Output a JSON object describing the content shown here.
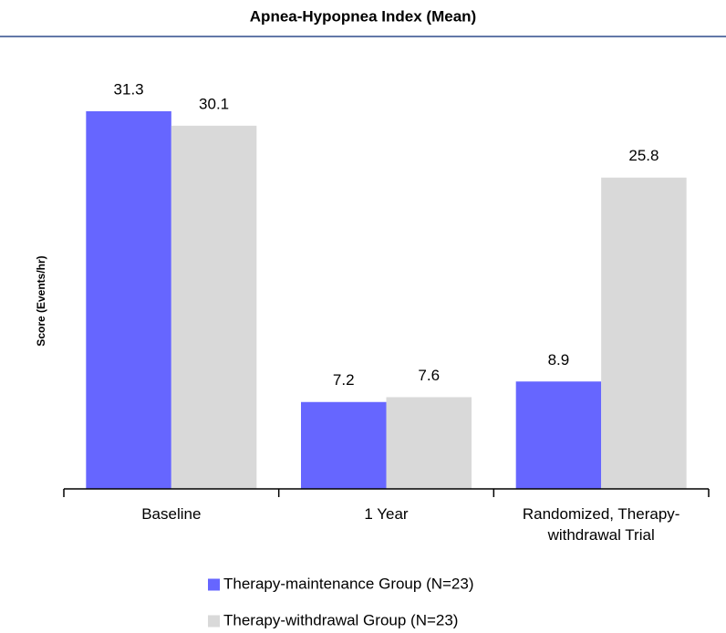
{
  "chart_data": {
    "type": "bar",
    "title": "Apnea-Hypopnea Index (Mean)",
    "y_label": "Score (Events/hr)",
    "categories": [
      "Baseline",
      "1 Year",
      "Randomized, Therapy-withdrawal Trial"
    ],
    "series": [
      {
        "name": "Therapy-maintenance Group (N=23)",
        "color": "#6666ff",
        "values": [
          31.3,
          7.2,
          8.9
        ]
      },
      {
        "name": "Therapy-withdrawal Group (N=23)",
        "color": "#d9d9d9",
        "values": [
          30.1,
          7.6,
          25.8
        ]
      }
    ],
    "ylim": [
      0,
      35
    ],
    "legend": "bottom",
    "grid": false
  }
}
